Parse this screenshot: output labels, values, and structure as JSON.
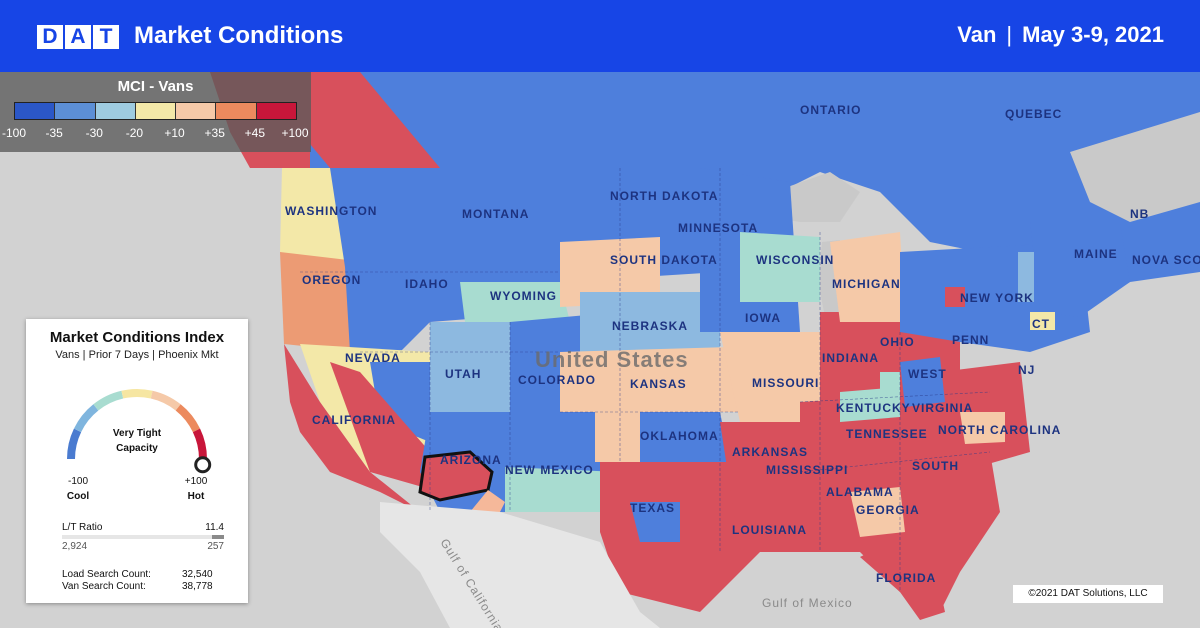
{
  "header": {
    "logo_letters": [
      "D",
      "A",
      "T"
    ],
    "title": "Market Conditions",
    "equipment": "Van",
    "separator": "|",
    "date_range": "May 3-9, 2021"
  },
  "legend": {
    "title": "MCI - Vans",
    "colors": [
      "#2b57c7",
      "#5c8fd6",
      "#9ecbe0",
      "#f3e8a8",
      "#f5c9a8",
      "#ec8a5e",
      "#c8163a"
    ],
    "ticks": [
      "-100",
      "-35",
      "-30",
      "-20",
      "+10",
      "+35",
      "+45",
      "+100"
    ]
  },
  "map_labels": {
    "countries": [
      "United States"
    ],
    "provinces": [
      "ONTARIO",
      "QUEBEC",
      "NB",
      "NOVA SCO"
    ],
    "states": [
      "WASHINGTON",
      "OREGON",
      "CALIFORNIA",
      "NEVADA",
      "IDAHO",
      "MONTANA",
      "WYOMING",
      "UTAH",
      "ARIZONA",
      "COLORADO",
      "NEW MEXICO",
      "NORTH DAKOTA",
      "SOUTH DAKOTA",
      "NEBRASKA",
      "KANSAS",
      "OKLAHOMA",
      "TEXAS",
      "MINNESOTA",
      "IOWA",
      "MISSOURI",
      "ARKANSAS",
      "LOUISIANA",
      "WISCONSIN",
      "MICHIGAN",
      "INDIANA",
      "OHIO",
      "KENTUCKY",
      "TENNESSEE",
      "MISSISSIPPI",
      "ALABAMA",
      "GEORGIA",
      "FLORIDA",
      "SOUTH",
      "NORTH CAROLINA",
      "VIRGINIA",
      "WEST",
      "PENN",
      "NEW YORK",
      "NJ",
      "CT",
      "MAINE"
    ],
    "water": [
      "Gulf of California",
      "Gulf of Mexico"
    ],
    "selected_market": "Phoenix"
  },
  "card": {
    "title": "Market Conditions Index",
    "subtitle": "Vans | Prior 7 Days | Phoenix Mkt",
    "status_line1": "Very Tight",
    "status_line2": "Capacity",
    "min_value": "-100",
    "min_label": "Cool",
    "max_value": "+100",
    "max_label": "Hot",
    "gauge_value": 0.97,
    "gauge_colors": [
      "#4a7bd0",
      "#7fb5de",
      "#a8dcd0",
      "#f6e6a2",
      "#f5c9a8",
      "#ec8a5e",
      "#c8163a"
    ],
    "lt_ratio_label": "L/T Ratio",
    "lt_ratio_value": "11.4",
    "loads": "2,924",
    "trucks": "257",
    "load_search_label": "Load Search Count:",
    "load_search_value": "32,540",
    "van_search_label": "Van Search Count:",
    "van_search_value": "38,778"
  },
  "copyright": "©2021 DAT Solutions, LLC"
}
